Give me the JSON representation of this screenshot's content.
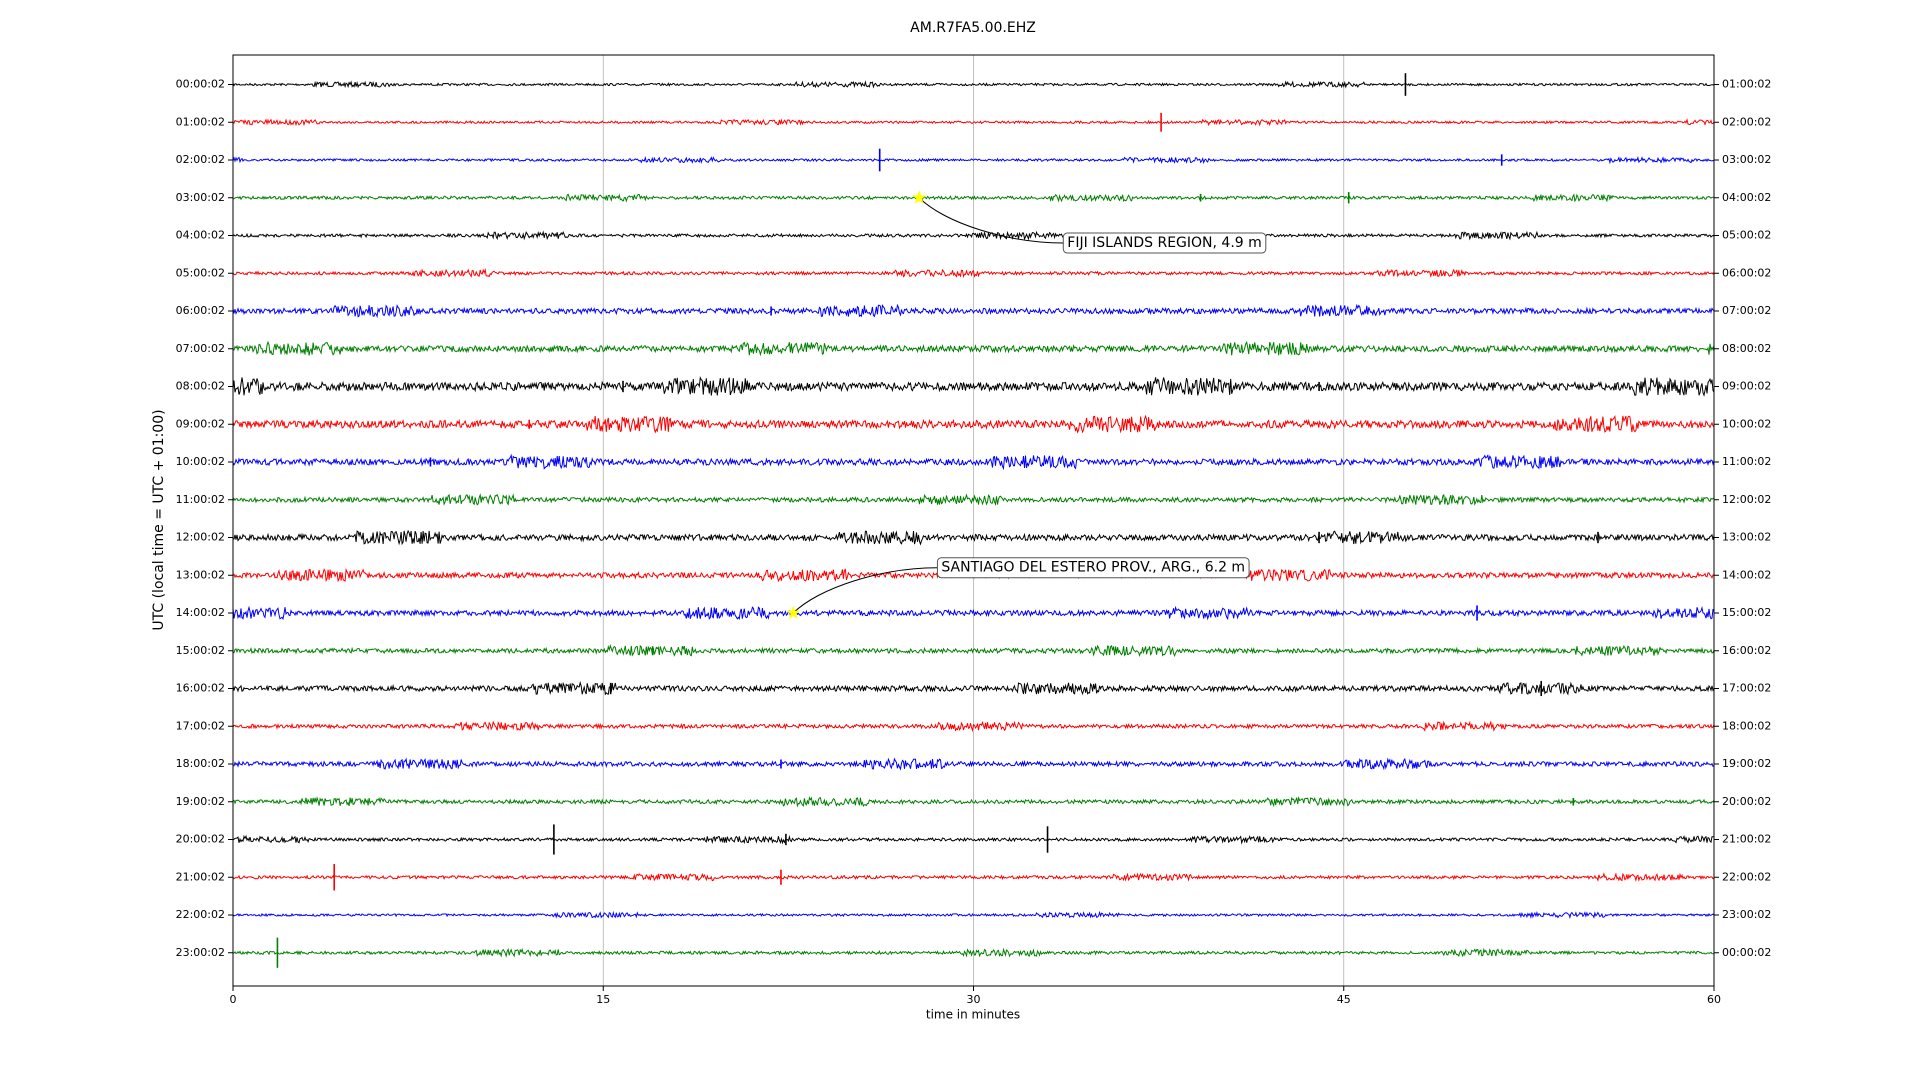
{
  "chart_data": {
    "type": "dayplot",
    "title": "AM.R7FA5.00.EHZ",
    "xlabel": "time in minutes",
    "ylabel": "UTC (local time = UTC + 01:00)",
    "xlim": [
      0,
      60
    ],
    "xticks": [
      0,
      15,
      30,
      45,
      60
    ],
    "grid": true,
    "rows": [
      {
        "left": "00:00:02",
        "right": "01:00:02",
        "color": "#000000",
        "amplitude": 0.03,
        "spikes": [
          [
            47.5,
            0.3
          ]
        ]
      },
      {
        "left": "01:00:02",
        "right": "02:00:02",
        "color": "#ff0000",
        "amplitude": 0.03,
        "spikes": [
          [
            37.6,
            0.25
          ]
        ]
      },
      {
        "left": "02:00:02",
        "right": "03:00:02",
        "color": "#0000ff",
        "amplitude": 0.03,
        "spikes": [
          [
            26.2,
            0.3
          ],
          [
            51.4,
            0.15
          ]
        ]
      },
      {
        "left": "03:00:02",
        "right": "04:00:02",
        "color": "#008000",
        "amplitude": 0.04,
        "spikes": [
          [
            39.2,
            0.1
          ],
          [
            45.2,
            0.15
          ]
        ]
      },
      {
        "left": "04:00:02",
        "right": "05:00:02",
        "color": "#000000",
        "amplitude": 0.04,
        "spikes": []
      },
      {
        "left": "05:00:02",
        "right": "06:00:02",
        "color": "#ff0000",
        "amplitude": 0.04,
        "spikes": []
      },
      {
        "left": "06:00:02",
        "right": "07:00:02",
        "color": "#0000ff",
        "amplitude": 0.07,
        "spikes": [
          [
            21.8,
            0.12
          ]
        ]
      },
      {
        "left": "07:00:02",
        "right": "08:00:02",
        "color": "#008000",
        "amplitude": 0.08,
        "spikes": []
      },
      {
        "left": "08:00:02",
        "right": "09:00:02",
        "color": "#000000",
        "amplitude": 0.11,
        "spikes": [
          [
            15.8,
            0.15
          ],
          [
            44,
            0.12
          ]
        ]
      },
      {
        "left": "09:00:02",
        "right": "10:00:02",
        "color": "#ff0000",
        "amplitude": 0.1,
        "spikes": [
          [
            12,
            0.12
          ]
        ]
      },
      {
        "left": "10:00:02",
        "right": "11:00:02",
        "color": "#0000ff",
        "amplitude": 0.08,
        "spikes": [
          [
            8,
            0.12
          ]
        ]
      },
      {
        "left": "11:00:02",
        "right": "12:00:02",
        "color": "#008000",
        "amplitude": 0.06,
        "spikes": []
      },
      {
        "left": "12:00:02",
        "right": "13:00:02",
        "color": "#000000",
        "amplitude": 0.08,
        "spikes": [
          [
            44,
            0.15
          ],
          [
            55.3,
            0.15
          ]
        ]
      },
      {
        "left": "13:00:02",
        "right": "14:00:02",
        "color": "#ff0000",
        "amplitude": 0.07,
        "spikes": []
      },
      {
        "left": "14:00:02",
        "right": "15:00:02",
        "color": "#0000ff",
        "amplitude": 0.07,
        "spikes": [
          [
            50.4,
            0.2
          ]
        ]
      },
      {
        "left": "15:00:02",
        "right": "16:00:02",
        "color": "#008000",
        "amplitude": 0.06,
        "spikes": [
          [
            17,
            0.12
          ]
        ]
      },
      {
        "left": "16:00:02",
        "right": "17:00:02",
        "color": "#000000",
        "amplitude": 0.07,
        "spikes": [
          [
            15.3,
            0.15
          ],
          [
            53,
            0.2
          ]
        ]
      },
      {
        "left": "17:00:02",
        "right": "18:00:02",
        "color": "#ff0000",
        "amplitude": 0.05,
        "spikes": []
      },
      {
        "left": "18:00:02",
        "right": "19:00:02",
        "color": "#0000ff",
        "amplitude": 0.06,
        "spikes": [
          [
            22.2,
            0.12
          ]
        ]
      },
      {
        "left": "19:00:02",
        "right": "20:00:02",
        "color": "#008000",
        "amplitude": 0.05,
        "spikes": [
          [
            54.3,
            0.1
          ]
        ]
      },
      {
        "left": "20:00:02",
        "right": "21:00:02",
        "color": "#000000",
        "amplitude": 0.04,
        "spikes": [
          [
            13,
            0.4
          ],
          [
            22.4,
            0.15
          ],
          [
            33,
            0.35
          ]
        ]
      },
      {
        "left": "21:00:02",
        "right": "22:00:02",
        "color": "#ff0000",
        "amplitude": 0.04,
        "spikes": [
          [
            4.1,
            0.35
          ],
          [
            22.2,
            0.2
          ]
        ]
      },
      {
        "left": "22:00:02",
        "right": "23:00:02",
        "color": "#0000ff",
        "amplitude": 0.03,
        "spikes": []
      },
      {
        "left": "23:00:02",
        "right": "00:00:02",
        "color": "#008000",
        "amplitude": 0.04,
        "spikes": [
          [
            1.8,
            0.4
          ]
        ]
      }
    ],
    "events": [
      {
        "label": "FIJI ISLANDS REGION, 4.9 m",
        "x": 27.8,
        "row": 3
      },
      {
        "label": "SANTIAGO DEL ESTERO PROV., ARG., 6.2 m",
        "x": 22.7,
        "row": 14
      }
    ]
  }
}
